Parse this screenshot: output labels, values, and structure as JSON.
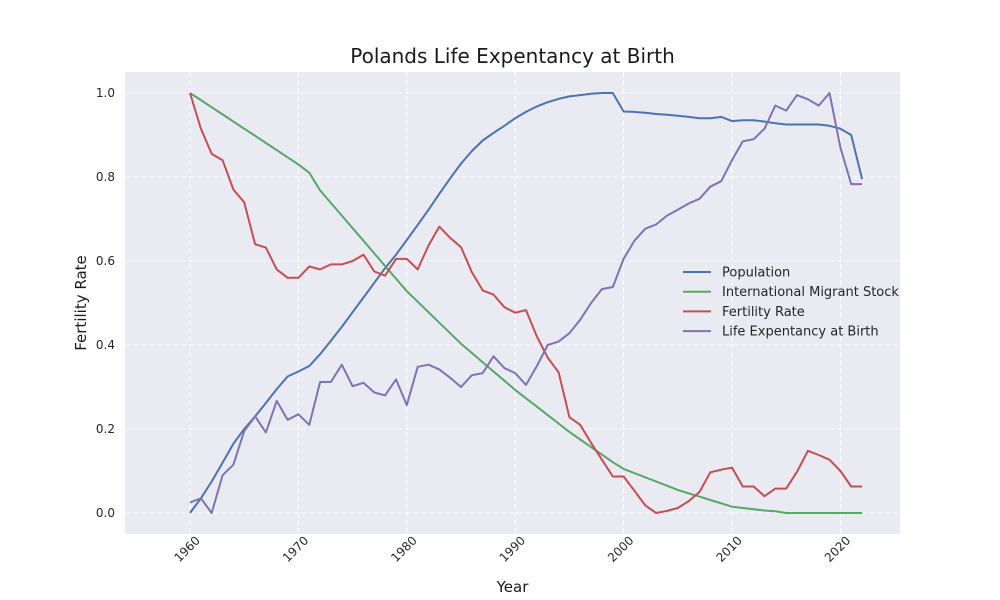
{
  "chart_data": {
    "type": "line",
    "title": "Polands Life Expentancy at Birth",
    "xlabel": "Year",
    "ylabel": "Fertility Rate",
    "xlim": [
      1954,
      2025.5
    ],
    "ylim": [
      -0.05,
      1.05
    ],
    "grid": true,
    "legend_position": "center-right",
    "x_ticks": [
      1960,
      1970,
      1980,
      1990,
      2000,
      2010,
      2020
    ],
    "y_ticks": [
      0.0,
      0.2,
      0.4,
      0.6,
      0.8,
      1.0
    ],
    "x_tick_labels": [
      "1960",
      "1970",
      "1980",
      "1990",
      "2000",
      "2010",
      "2020"
    ],
    "y_tick_labels": [
      "0.0",
      "0.2",
      "0.4",
      "0.6",
      "0.8",
      "1.0"
    ],
    "x": [
      1960,
      1961,
      1962,
      1963,
      1964,
      1965,
      1966,
      1967,
      1968,
      1969,
      1970,
      1971,
      1972,
      1973,
      1974,
      1975,
      1976,
      1977,
      1978,
      1979,
      1980,
      1981,
      1982,
      1983,
      1984,
      1985,
      1986,
      1987,
      1988,
      1989,
      1990,
      1991,
      1992,
      1993,
      1994,
      1995,
      1996,
      1997,
      1998,
      1999,
      2000,
      2001,
      2002,
      2003,
      2004,
      2005,
      2006,
      2007,
      2008,
      2009,
      2010,
      2011,
      2012,
      2013,
      2014,
      2015,
      2016,
      2017,
      2018,
      2019,
      2020,
      2021,
      2022
    ],
    "series": [
      {
        "name": "Population",
        "color": "#4c72b0",
        "values": [
          0.0,
          0.035,
          0.075,
          0.12,
          0.165,
          0.2,
          0.23,
          0.262,
          0.295,
          0.325,
          0.337,
          0.35,
          0.378,
          0.41,
          0.443,
          0.478,
          0.513,
          0.548,
          0.583,
          0.615,
          0.65,
          0.686,
          0.722,
          0.76,
          0.797,
          0.832,
          0.862,
          0.887,
          0.905,
          0.922,
          0.94,
          0.955,
          0.968,
          0.978,
          0.986,
          0.992,
          0.995,
          0.998,
          1.0,
          1.0,
          0.956,
          0.955,
          0.953,
          0.95,
          0.948,
          0.946,
          0.943,
          0.94,
          0.94,
          0.943,
          0.933,
          0.935,
          0.935,
          0.932,
          0.928,
          0.925,
          0.925,
          0.925,
          0.925,
          0.922,
          0.915,
          0.9,
          0.795
        ]
      },
      {
        "name": "International Migrant Stock",
        "color": "#55a868",
        "values": [
          1.0,
          0.983,
          0.966,
          0.949,
          0.932,
          0.915,
          0.898,
          0.881,
          0.864,
          0.847,
          0.83,
          0.81,
          0.768,
          0.738,
          0.708,
          0.678,
          0.648,
          0.618,
          0.588,
          0.558,
          0.528,
          0.503,
          0.478,
          0.453,
          0.428,
          0.403,
          0.381,
          0.359,
          0.337,
          0.315,
          0.293,
          0.273,
          0.253,
          0.233,
          0.213,
          0.193,
          0.175,
          0.157,
          0.139,
          0.121,
          0.105,
          0.095,
          0.085,
          0.075,
          0.065,
          0.055,
          0.047,
          0.039,
          0.031,
          0.023,
          0.015,
          0.012,
          0.009,
          0.006,
          0.004,
          0.0,
          0.0,
          0.0,
          0.0,
          0.0,
          0.0,
          0.0,
          0.0
        ]
      },
      {
        "name": "Fertility Rate",
        "color": "#c44e52",
        "values": [
          1.0,
          0.915,
          0.855,
          0.84,
          0.77,
          0.74,
          0.64,
          0.632,
          0.58,
          0.56,
          0.56,
          0.587,
          0.58,
          0.592,
          0.592,
          0.6,
          0.615,
          0.575,
          0.565,
          0.605,
          0.605,
          0.58,
          0.637,
          0.682,
          0.655,
          0.633,
          0.573,
          0.53,
          0.52,
          0.49,
          0.477,
          0.483,
          0.42,
          0.37,
          0.335,
          0.228,
          0.21,
          0.167,
          0.127,
          0.087,
          0.087,
          0.053,
          0.018,
          0.0,
          0.005,
          0.012,
          0.028,
          0.05,
          0.097,
          0.103,
          0.108,
          0.063,
          0.063,
          0.04,
          0.058,
          0.058,
          0.098,
          0.148,
          0.138,
          0.127,
          0.1,
          0.063,
          0.063
        ]
      },
      {
        "name": "Life Expentancy at Birth",
        "color": "#8172b2",
        "values": [
          0.025,
          0.035,
          0.0,
          0.09,
          0.115,
          0.195,
          0.23,
          0.192,
          0.267,
          0.222,
          0.235,
          0.21,
          0.312,
          0.312,
          0.353,
          0.302,
          0.31,
          0.287,
          0.28,
          0.318,
          0.257,
          0.348,
          0.353,
          0.342,
          0.322,
          0.3,
          0.328,
          0.333,
          0.373,
          0.345,
          0.333,
          0.305,
          0.35,
          0.4,
          0.408,
          0.428,
          0.46,
          0.5,
          0.533,
          0.538,
          0.605,
          0.648,
          0.677,
          0.687,
          0.708,
          0.722,
          0.737,
          0.748,
          0.777,
          0.79,
          0.84,
          0.885,
          0.89,
          0.915,
          0.97,
          0.958,
          0.995,
          0.985,
          0.97,
          1.0,
          0.87,
          0.783,
          0.783
        ]
      }
    ]
  }
}
